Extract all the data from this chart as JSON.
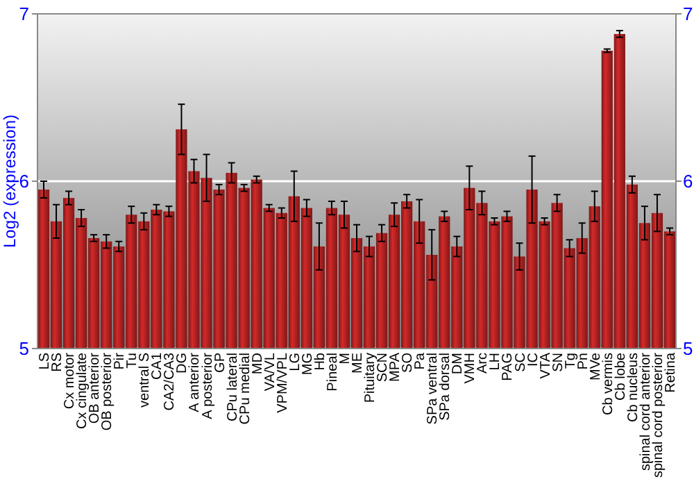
{
  "chart_data": {
    "type": "bar",
    "ylabel": "Log2 (expression)",
    "ylim": [
      5,
      7
    ],
    "yticks": [
      5,
      6,
      7
    ],
    "y2lim": [
      5,
      7
    ],
    "y2ticks": [
      5,
      6,
      7
    ],
    "grid": "y",
    "categories": [
      "LS",
      "RS",
      "Cx motor",
      "Cx cingulate",
      "OB anterior",
      "OB posterior",
      "Pir",
      "Tu",
      "ventral S",
      "CA1",
      "CA2/CA3",
      "DG",
      "A anterior",
      "A posterior",
      "GP",
      "CPu lateral",
      "CPu medial",
      "MD",
      "VA/VL",
      "VPM/VPL",
      "LG",
      "MG",
      "Hb",
      "Pineal",
      "M",
      "ME",
      "Pituitary",
      "SCN",
      "MPA",
      "SO",
      "Pa",
      "SPa ventral",
      "SPa dorsal",
      "DM",
      "VMH",
      "Arc",
      "LH",
      "PAG",
      "SC",
      "IC",
      "VTA",
      "SN",
      "Tg",
      "Pn",
      "MVe",
      "Cb vermis",
      "Cb lobe",
      "Cb nucleus",
      "spinal cord anterior",
      "spinal cord posterior",
      "Retina"
    ],
    "values": [
      5.95,
      5.76,
      5.9,
      5.78,
      5.66,
      5.64,
      5.61,
      5.8,
      5.76,
      5.83,
      5.82,
      6.31,
      6.06,
      6.02,
      5.95,
      6.05,
      5.96,
      6.01,
      5.84,
      5.81,
      5.91,
      5.84,
      5.61,
      5.84,
      5.8,
      5.66,
      5.61,
      5.69,
      5.8,
      5.88,
      5.76,
      5.56,
      5.79,
      5.61,
      5.96,
      5.87,
      5.76,
      5.79,
      5.55,
      5.95,
      5.76,
      5.87,
      5.6,
      5.66,
      5.85,
      6.78,
      6.88,
      5.98,
      5.75,
      5.81,
      5.7
    ],
    "errors": [
      0.05,
      0.1,
      0.04,
      0.05,
      0.02,
      0.04,
      0.03,
      0.05,
      0.05,
      0.03,
      0.03,
      0.15,
      0.07,
      0.14,
      0.03,
      0.06,
      0.02,
      0.02,
      0.02,
      0.03,
      0.15,
      0.05,
      0.14,
      0.04,
      0.08,
      0.08,
      0.06,
      0.05,
      0.07,
      0.04,
      0.13,
      0.15,
      0.03,
      0.06,
      0.13,
      0.07,
      0.02,
      0.03,
      0.08,
      0.2,
      0.02,
      0.05,
      0.05,
      0.09,
      0.09,
      0.01,
      0.02,
      0.05,
      0.1,
      0.11,
      0.02
    ],
    "color": "#b22222"
  }
}
